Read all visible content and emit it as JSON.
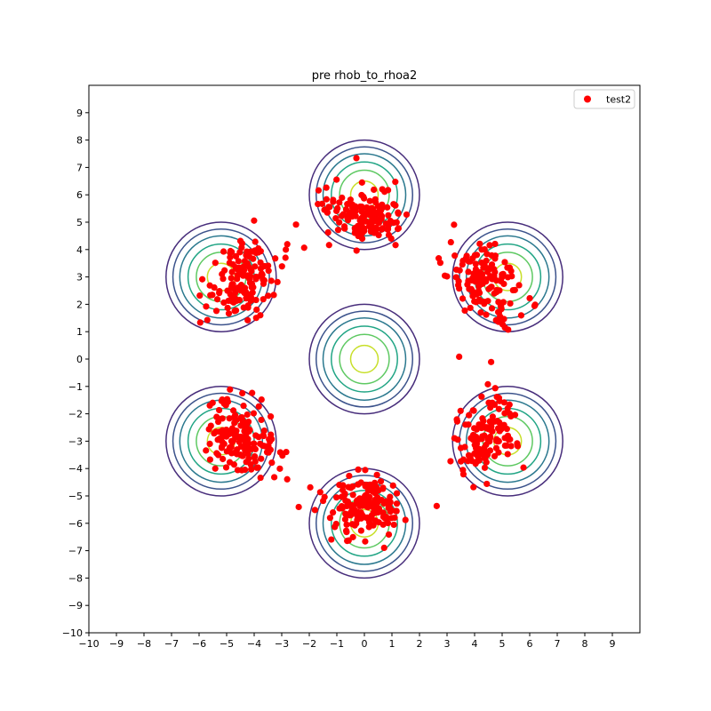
{
  "chart_data": {
    "type": "scatter",
    "title": "pre rhob_to_rhoa2",
    "xlabel": "",
    "ylabel": "",
    "xlim": [
      -10,
      10
    ],
    "ylim": [
      -10,
      10
    ],
    "x_ticks": [
      -10,
      -9,
      -8,
      -7,
      -6,
      -5,
      -4,
      -3,
      -2,
      -1,
      0,
      1,
      2,
      3,
      4,
      5,
      6,
      7,
      8,
      9
    ],
    "y_ticks": [
      -10,
      -9,
      -8,
      -7,
      -6,
      -5,
      -4,
      -3,
      -2,
      -1,
      0,
      1,
      2,
      3,
      4,
      5,
      6,
      7,
      8,
      9
    ],
    "grid": false,
    "legend_position": "top-right",
    "contours": {
      "centers": [
        [
          0,
          6
        ],
        [
          5.2,
          3
        ],
        [
          5.2,
          -3
        ],
        [
          0,
          -6
        ],
        [
          -5.2,
          -3
        ],
        [
          -5.2,
          3
        ],
        [
          0,
          0
        ]
      ],
      "radii": [
        0.5,
        0.9,
        1.2,
        1.5,
        1.75,
        2.0
      ],
      "colors": [
        "#c8df2a",
        "#5ec962",
        "#21a585",
        "#2a788e",
        "#3b528b",
        "#472d7b"
      ]
    },
    "series": [
      {
        "name": "test2",
        "color": "#ff0000",
        "marker": "circle",
        "clusters": [
          {
            "center": [
              0,
              5.2
            ],
            "count": 160
          },
          {
            "center": [
              4.4,
              2.9
            ],
            "count": 140
          },
          {
            "center": [
              4.4,
              -2.9
            ],
            "count": 140
          },
          {
            "center": [
              0,
              -5.4
            ],
            "count": 160
          },
          {
            "center": [
              -4.4,
              -2.9
            ],
            "count": 150
          },
          {
            "center": [
              -4.4,
              2.9
            ],
            "count": 150
          }
        ]
      }
    ]
  }
}
